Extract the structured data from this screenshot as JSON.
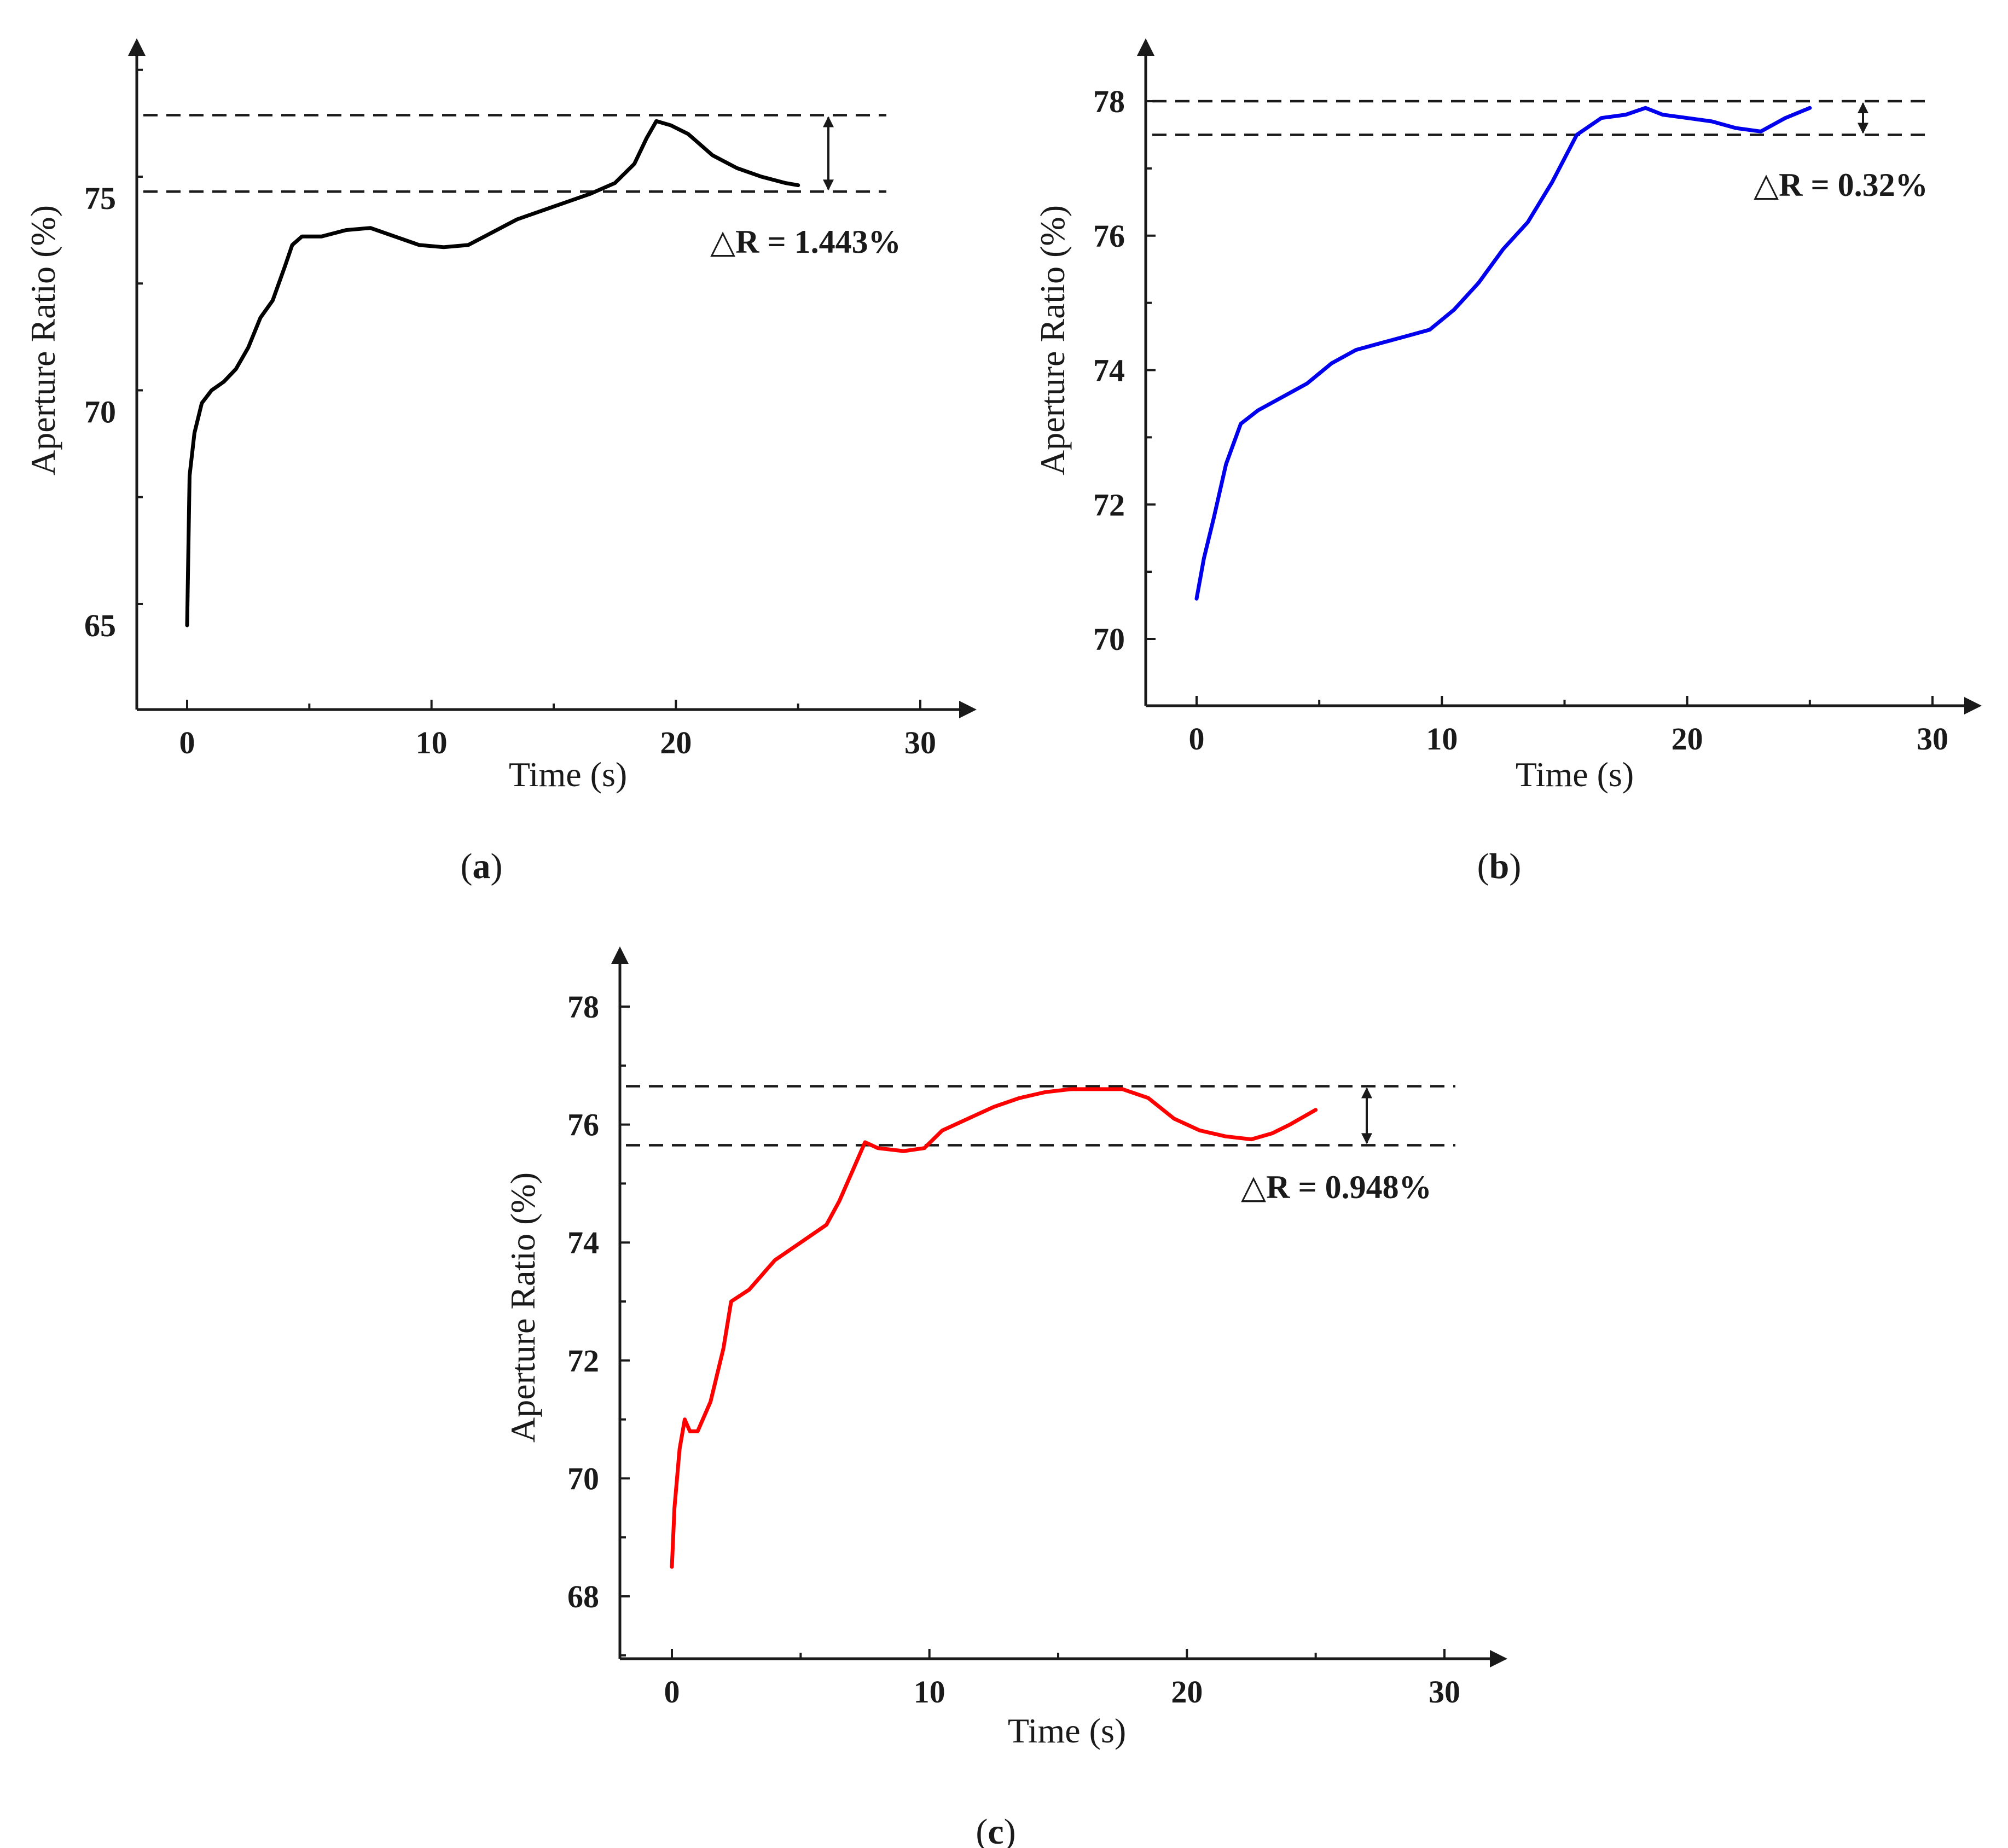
{
  "chart_data": [
    {
      "type": "line",
      "panel_label": "a",
      "xlabel": "Time (s)",
      "ylabel": "Aperture Ratio (%)",
      "xlim": [
        -2,
        32
      ],
      "ylim": [
        63,
        79
      ],
      "xticks": [
        0,
        10,
        20,
        30
      ],
      "yticks": [
        65,
        70,
        75
      ],
      "line_color": "#000000",
      "grid": false,
      "legend": "none",
      "reference_lines": [
        76.94,
        75.15
      ],
      "delta_label": "△R = 1.443%",
      "x": [
        0,
        0.1,
        0.3,
        0.6,
        1,
        1.5,
        2,
        2.5,
        3,
        3.5,
        4,
        4.3,
        4.7,
        5.5,
        6.5,
        7.5,
        8.5,
        9.5,
        10.5,
        11.5,
        12.5,
        13.5,
        15,
        16.5,
        17.5,
        18.3,
        18.8,
        19.2,
        19.8,
        20.5,
        21.5,
        22.5,
        23.5,
        24.5,
        25
      ],
      "y": [
        65.0,
        68.5,
        69.5,
        70.2,
        70.5,
        70.7,
        71.0,
        71.5,
        72.2,
        72.6,
        73.4,
        73.9,
        74.1,
        74.1,
        74.25,
        74.3,
        74.1,
        73.9,
        73.85,
        73.9,
        74.2,
        74.5,
        74.8,
        75.1,
        75.35,
        75.8,
        76.4,
        76.8,
        76.7,
        76.5,
        76.0,
        75.7,
        75.5,
        75.35,
        75.3
      ]
    },
    {
      "type": "line",
      "panel_label": "b",
      "xlabel": "Time (s)",
      "ylabel": "Aperture Ratio (%)",
      "xlim": [
        -2,
        32
      ],
      "ylim": [
        69,
        79
      ],
      "xticks": [
        0,
        10,
        20,
        30
      ],
      "yticks": [
        70,
        72,
        74,
        76,
        78
      ],
      "line_color": "#0000ee",
      "grid": false,
      "legend": "none",
      "reference_lines": [
        78.0,
        77.5
      ],
      "delta_label": "△R = 0.32%",
      "x": [
        0,
        0.3,
        0.7,
        1.2,
        1.8,
        2.5,
        3.5,
        4.5,
        5.5,
        6.5,
        7.5,
        8.5,
        9.5,
        10.5,
        11.5,
        12.5,
        13.5,
        14.5,
        15.5,
        16.5,
        17.5,
        18.3,
        19,
        20,
        21,
        22,
        23,
        24,
        25
      ],
      "y": [
        70.6,
        71.2,
        71.8,
        72.6,
        73.2,
        73.4,
        73.6,
        73.8,
        74.1,
        74.3,
        74.4,
        74.5,
        74.6,
        74.9,
        75.3,
        75.8,
        76.2,
        76.8,
        77.5,
        77.75,
        77.8,
        77.9,
        77.8,
        77.75,
        77.7,
        77.6,
        77.55,
        77.75,
        77.9
      ]
    },
    {
      "type": "line",
      "panel_label": "c",
      "xlabel": "Time (s)",
      "ylabel": "Aperture Ratio (%)",
      "xlim": [
        -2,
        32
      ],
      "ylim": [
        67,
        80
      ],
      "xticks": [
        0,
        10,
        20,
        30
      ],
      "yticks": [
        68,
        70,
        72,
        74,
        76,
        78
      ],
      "line_color": "#ff0000",
      "grid": false,
      "legend": "none",
      "reference_lines": [
        76.65,
        75.65
      ],
      "delta_label": "△R = 0.948%",
      "x": [
        0,
        0.1,
        0.3,
        0.5,
        0.7,
        1,
        1.5,
        2,
        2.3,
        3,
        4,
        5,
        6,
        6.5,
        7,
        7.5,
        8,
        9,
        9.8,
        10.5,
        11.5,
        12.5,
        13.5,
        14.5,
        15.5,
        16.5,
        17.5,
        18.5,
        19.5,
        20.5,
        21.5,
        22.5,
        23.3,
        24,
        25
      ],
      "y": [
        68.5,
        69.5,
        70.5,
        71.0,
        70.8,
        70.8,
        71.3,
        72.2,
        73.0,
        73.2,
        73.7,
        74.0,
        74.3,
        74.7,
        75.2,
        75.7,
        75.6,
        75.55,
        75.6,
        75.9,
        76.1,
        76.3,
        76.45,
        76.55,
        76.6,
        76.6,
        76.6,
        76.45,
        76.1,
        75.9,
        75.8,
        75.75,
        75.85,
        76.0,
        76.25
      ]
    }
  ]
}
